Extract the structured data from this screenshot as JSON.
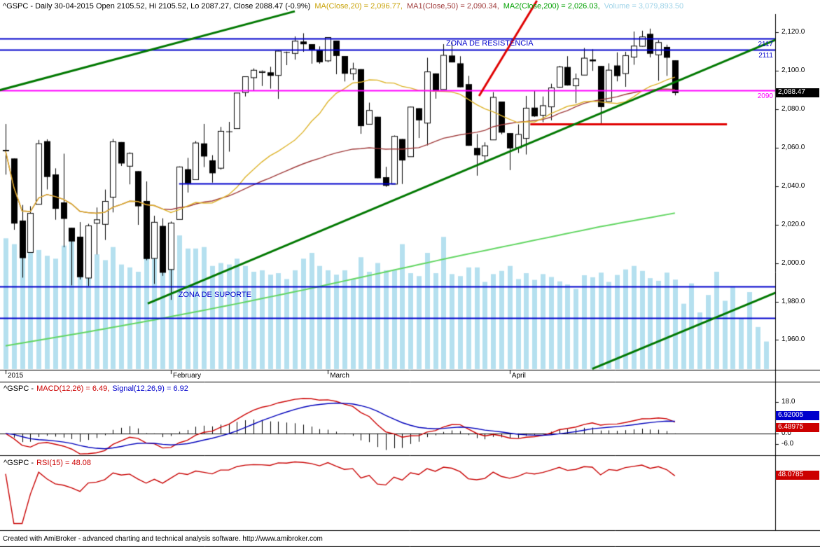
{
  "title_bar": {
    "symbol_info": "^GSPC - Daily 30-04-2015 Open 2105.52, Hi 2105.52, Lo 2087.27, Close 2088.47 (-0.9%)",
    "ma20_label": "MA(Close,20) = 2,096.77,",
    "ma50_label": "MA1(Close,50) = 2,090.34,",
    "ma200_label": "MA2(Close,200) = 2,026.03,",
    "volume_label": "Volume = 3,079,893.50"
  },
  "footer": {
    "text": "Created with AmiBroker - advanced charting and technical analysis software. http://www.amibroker.com"
  },
  "colors": {
    "ma20": "#ddb32a",
    "ma50": "#a03c3c",
    "ma200": "#63d663",
    "volume": "#b5e0ef",
    "blue_line": "#0000cc",
    "magenta_line": "#ff00ff",
    "red_line": "#e00000",
    "dark_green": "#007800",
    "macd": "#cc0000",
    "signal": "#0000bb",
    "rsi": "#c80000",
    "candle": "#000000"
  },
  "chart_data": [
    {
      "type": "candlestick",
      "symbol": "^GSPC",
      "interval": "Daily",
      "dates": [
        "2015-01-02",
        "2015-01-05",
        "2015-01-06",
        "2015-01-07",
        "2015-01-08",
        "2015-01-09",
        "2015-01-12",
        "2015-01-13",
        "2015-01-14",
        "2015-01-15",
        "2015-01-16",
        "2015-01-20",
        "2015-01-21",
        "2015-01-22",
        "2015-01-23",
        "2015-01-26",
        "2015-01-27",
        "2015-01-28",
        "2015-01-29",
        "2015-01-30",
        "2015-02-02",
        "2015-02-03",
        "2015-02-04",
        "2015-02-05",
        "2015-02-06",
        "2015-02-09",
        "2015-02-10",
        "2015-02-11",
        "2015-02-12",
        "2015-02-13",
        "2015-02-17",
        "2015-02-18",
        "2015-02-19",
        "2015-02-20",
        "2015-02-23",
        "2015-02-24",
        "2015-02-25",
        "2015-02-26",
        "2015-02-27",
        "2015-03-02",
        "2015-03-03",
        "2015-03-04",
        "2015-03-05",
        "2015-03-06",
        "2015-03-09",
        "2015-03-10",
        "2015-03-11",
        "2015-03-12",
        "2015-03-13",
        "2015-03-16",
        "2015-03-17",
        "2015-03-18",
        "2015-03-19",
        "2015-03-20",
        "2015-03-23",
        "2015-03-24",
        "2015-03-25",
        "2015-03-26",
        "2015-03-27",
        "2015-03-30",
        "2015-03-31",
        "2015-04-01",
        "2015-04-02",
        "2015-04-06",
        "2015-04-07",
        "2015-04-08",
        "2015-04-09",
        "2015-04-10",
        "2015-04-13",
        "2015-04-14",
        "2015-04-15",
        "2015-04-16",
        "2015-04-17",
        "2015-04-20",
        "2015-04-21",
        "2015-04-22",
        "2015-04-23",
        "2015-04-24",
        "2015-04-27",
        "2015-04-28",
        "2015-04-29",
        "2015-04-30"
      ],
      "ohlc": [
        [
          2058.9,
          2072.36,
          2046.04,
          2058.2
        ],
        [
          2054.44,
          2054.44,
          2017.34,
          2020.58
        ],
        [
          2022.15,
          2030.25,
          1992.44,
          2002.61
        ],
        [
          2005.55,
          2029.61,
          2005.55,
          2025.9
        ],
        [
          2030.61,
          2064.08,
          2030.61,
          2062.14
        ],
        [
          2063.45,
          2064.43,
          2038.33,
          2044.81
        ],
        [
          2046.13,
          2049.3,
          2022.58,
          2028.26
        ],
        [
          2031.58,
          2056.93,
          2008.25,
          2023.03
        ],
        [
          2018.4,
          2018.4,
          1988.44,
          2011.27
        ],
        [
          2013.75,
          2021.35,
          1991.47,
          1992.67
        ],
        [
          1992.25,
          2020.46,
          1988.12,
          2019.42
        ],
        [
          2020.76,
          2028.94,
          2004.49,
          2022.55
        ],
        [
          2020.19,
          2038.29,
          2012.04,
          2032.12
        ],
        [
          2034.3,
          2064.62,
          2026.38,
          2063.15
        ],
        [
          2062.98,
          2062.98,
          2050.54,
          2051.82
        ],
        [
          2050.42,
          2057.62,
          2040.97,
          2057.09
        ],
        [
          2047.86,
          2047.86,
          2019.91,
          2029.55
        ],
        [
          2032.34,
          2042.49,
          2001.49,
          2002.16
        ],
        [
          2002.45,
          2024.64,
          1989.18,
          2021.25
        ],
        [
          2019.35,
          2023.32,
          1993.38,
          1994.99
        ],
        [
          1996.67,
          2021.66,
          1980.9,
          2020.85
        ],
        [
          2022.71,
          2050.3,
          2022.71,
          2050.03
        ],
        [
          2048.86,
          2054.74,
          2036.72,
          2041.51
        ],
        [
          2043.45,
          2063.55,
          2043.45,
          2062.52
        ],
        [
          2062.28,
          2072.4,
          2049.97,
          2055.47
        ],
        [
          2053.47,
          2056.16,
          2041.88,
          2046.74
        ],
        [
          2049.38,
          2070.86,
          2048.62,
          2068.59
        ],
        [
          2068.55,
          2073.48,
          2057.99,
          2068.53
        ],
        [
          2069.98,
          2088.53,
          2069.98,
          2088.48
        ],
        [
          2088.78,
          2097.03,
          2086.7,
          2096.99
        ],
        [
          2096.47,
          2101.3,
          2089.8,
          2100.34
        ],
        [
          2099.16,
          2100.23,
          2092.15,
          2099.68
        ],
        [
          2099.25,
          2102.13,
          2090.79,
          2097.45
        ],
        [
          2097.65,
          2110.61,
          2085.44,
          2110.3
        ],
        [
          2109.83,
          2110.05,
          2103.0,
          2109.66
        ],
        [
          2109.1,
          2117.94,
          2105.87,
          2115.48
        ],
        [
          2115.3,
          2119.59,
          2109.89,
          2113.86
        ],
        [
          2113.91,
          2113.91,
          2103.76,
          2110.74
        ],
        [
          2110.88,
          2112.74,
          2103.75,
          2104.5
        ],
        [
          2105.23,
          2117.52,
          2104.5,
          2117.39
        ],
        [
          2115.76,
          2115.76,
          2098.26,
          2107.78
        ],
        [
          2107.72,
          2107.72,
          2094.49,
          2098.53
        ],
        [
          2098.54,
          2104.25,
          2095.22,
          2101.04
        ],
        [
          2100.91,
          2100.91,
          2067.27,
          2071.26
        ],
        [
          2072.25,
          2083.49,
          2072.21,
          2079.43
        ],
        [
          2076.14,
          2076.14,
          2044.16,
          2044.16
        ],
        [
          2044.69,
          2050.08,
          2039.69,
          2040.24
        ],
        [
          2041.1,
          2066.41,
          2041.1,
          2065.95
        ],
        [
          2064.56,
          2064.56,
          2041.17,
          2053.4
        ],
        [
          2055.35,
          2081.41,
          2055.35,
          2081.19
        ],
        [
          2080.59,
          2080.59,
          2065.08,
          2074.28
        ],
        [
          2072.84,
          2106.85,
          2061.23,
          2099.5
        ],
        [
          2098.69,
          2098.69,
          2085.56,
          2089.27
        ],
        [
          2090.32,
          2113.92,
          2090.32,
          2108.1
        ],
        [
          2107.99,
          2114.86,
          2104.42,
          2104.42
        ],
        [
          2103.94,
          2107.63,
          2091.5,
          2091.5
        ],
        [
          2093.1,
          2097.43,
          2061.05,
          2061.05
        ],
        [
          2059.94,
          2067.15,
          2045.5,
          2056.15
        ],
        [
          2055.78,
          2062.83,
          2052.96,
          2061.02
        ],
        [
          2064.11,
          2088.97,
          2064.11,
          2086.24
        ],
        [
          2084.05,
          2084.05,
          2067.04,
          2067.89
        ],
        [
          2067.63,
          2067.63,
          2048.38,
          2059.69
        ],
        [
          2060.03,
          2072.17,
          2057.32,
          2066.96
        ],
        [
          2064.87,
          2086.99,
          2056.52,
          2080.62
        ],
        [
          2080.9,
          2089.81,
          2076.1,
          2076.33
        ],
        [
          2076.94,
          2086.69,
          2073.3,
          2081.9
        ],
        [
          2081.29,
          2093.31,
          2074.29,
          2091.18
        ],
        [
          2091.51,
          2102.61,
          2091.23,
          2102.06
        ],
        [
          2102.03,
          2107.65,
          2092.33,
          2092.43
        ],
        [
          2092.28,
          2098.62,
          2083.24,
          2095.84
        ],
        [
          2097.82,
          2111.91,
          2097.82,
          2106.63
        ],
        [
          2105.96,
          2111.3,
          2100.02,
          2104.99
        ],
        [
          2102.58,
          2102.58,
          2072.37,
          2081.18
        ],
        [
          2084.11,
          2103.94,
          2084.11,
          2100.4
        ],
        [
          2102.82,
          2109.64,
          2094.55,
          2097.29
        ],
        [
          2098.62,
          2109.98,
          2091.72,
          2107.96
        ],
        [
          2107.21,
          2120.49,
          2103.19,
          2112.93
        ],
        [
          2112.81,
          2120.92,
          2112.65,
          2117.69
        ],
        [
          2119.29,
          2122.0,
          2107.04,
          2108.92
        ],
        [
          2108.35,
          2116.04,
          2094.89,
          2114.76
        ],
        [
          2112.49,
          2113.65,
          2097.41,
          2106.85
        ],
        [
          2105.52,
          2105.52,
          2087.27,
          2088.47
        ]
      ],
      "volume": [
        4500000,
        4300000,
        4650000,
        4200000,
        4100000,
        3900000,
        3800000,
        4250000,
        4400000,
        4300000,
        4100000,
        3950000,
        3750000,
        4200000,
        3600000,
        3500000,
        3350000,
        4100000,
        4200000,
        4550000,
        4000000,
        4600000,
        4150000,
        4150000,
        4200000,
        3550000,
        3650000,
        3600000,
        3800000,
        3550000,
        3350000,
        3400000,
        3250000,
        3300000,
        3100000,
        3400000,
        3800000,
        4000000,
        3550000,
        3400000,
        3250000,
        3400000,
        3100000,
        3850000,
        3350000,
        3650000,
        3400000,
        3400000,
        4300000,
        3300000,
        3200000,
        4000000,
        3300000,
        4550000,
        3270000,
        3200000,
        3500000,
        3500000,
        3000000,
        3270000,
        3380000,
        3550000,
        3100000,
        3300000,
        3070000,
        3270000,
        3170000,
        3020000,
        2910000,
        2760000,
        3230000,
        3160000,
        3320000,
        3000000,
        3240000,
        3430000,
        3550000,
        3380000,
        3130000,
        3040000,
        3320000,
        3079893.5
      ],
      "future_volume": [
        2250000,
        2950000,
        1950000,
        2550000,
        3350000,
        2350000,
        2850000,
        1750000,
        2650000,
        1450000,
        950000
      ],
      "volume_axis_max": 4700000,
      "y_axis": {
        "range": [
          1944.5,
          2129.6
        ],
        "tick_values": [
          2120,
          2100,
          2080,
          2060,
          2040,
          2020,
          2000,
          1980,
          1960
        ],
        "tick_labels": [
          "2,120.0",
          "2,100.0",
          "2,080.0",
          "2,060.0",
          "2,040.0",
          "2,020.0",
          "2,000.0",
          "1,980.0",
          "1,960.0"
        ]
      },
      "x_axis": {
        "ticks": [
          {
            "index": 0,
            "label": "2015"
          },
          {
            "index": 20,
            "label": "February"
          },
          {
            "index": 39,
            "label": "March"
          },
          {
            "index": 61,
            "label": "April"
          }
        ]
      },
      "overlays": {
        "ma20_period": 20,
        "ma50_period": 50,
        "ma200": {
          "indices": [
            0,
            9,
            18,
            27,
            36,
            45,
            54,
            63,
            72,
            81
          ],
          "values": [
            1957,
            1963.5,
            1970.5,
            1978,
            1986,
            1994.5,
            2003,
            2011,
            2019,
            2026.03
          ]
        },
        "hlines": [
          {
            "price": 2117,
            "label": "2117",
            "color": "#0000cc",
            "width": 2
          },
          {
            "price": 2111,
            "label": "2111",
            "color": "#0000cc",
            "width": 2
          },
          {
            "price": 2090,
            "label": "2090",
            "color": "#ff00ff",
            "width": 2
          },
          {
            "price": 2041.5,
            "color": "#0000cc",
            "width": 2,
            "from": 21,
            "to": 47.2
          },
          {
            "price": 1988,
            "color": "#0000cc",
            "width": 2
          },
          {
            "price": 1971.5,
            "color": "#0000cc",
            "width": 2
          },
          {
            "price": 2072.5,
            "color": "#e00000",
            "width": 3,
            "from": 63.5,
            "to": 87.3
          }
        ],
        "trendlines": [
          {
            "i1": 17.2,
            "p1": 1979,
            "i2": 94.2,
            "p2": 2118,
            "color": "#007800",
            "width": 3
          },
          {
            "i1": 71,
            "p1": 1945,
            "i2": 99,
            "p2": 1995,
            "color": "#007800",
            "width": 3
          },
          {
            "i1": -0.7,
            "p1": 2090,
            "i2": 35,
            "p2": 2131,
            "color": "#007800",
            "width": 3
          },
          {
            "i1": 57.3,
            "p1": 2087,
            "i2": 64.3,
            "p2": 2136.5,
            "color": "#e00000",
            "width": 3
          }
        ],
        "annotations": [
          {
            "text": "ZONA DE RESISTÊNCIA",
            "index": 53.3,
            "price": 2114.3,
            "color": "#0000cc"
          },
          {
            "text": "ZONA DE SUPORTE",
            "index": 20.9,
            "price": 1983.5,
            "color": "#0000cc"
          }
        ]
      },
      "last_price_box": {
        "text": "2,088.47",
        "price": 2088.47
      }
    },
    {
      "type": "line",
      "name": "MACD",
      "title_prefix": "^GSPC -",
      "macd_label": "MACD(12,26) = 6.49,",
      "signal_label": "Signal(12,26,9) = 6.92",
      "params": {
        "fast": 12,
        "slow": 26,
        "signal": 9
      },
      "macd_value": 6.49,
      "signal_value": 6.92,
      "y_axis": {
        "range": [
          -12,
          29
        ],
        "tick_values": [
          18,
          0,
          -6
        ],
        "tick_labels": [
          "18.0",
          "0.0",
          "-6.0"
        ]
      },
      "value_boxes": [
        {
          "text": "6.92005",
          "value": 6.92,
          "bg": "blue"
        },
        {
          "text": "6.48975",
          "value": 6.49,
          "bg": "red"
        }
      ]
    },
    {
      "type": "line",
      "name": "RSI",
      "title_prefix": "^GSPC -",
      "rsi_label": "RSI(15) = 48.08",
      "period": 15,
      "rsi_value": 48.08,
      "value_boxes": [
        {
          "text": "48.0785",
          "value": 48.08,
          "bg": "red"
        }
      ]
    }
  ]
}
